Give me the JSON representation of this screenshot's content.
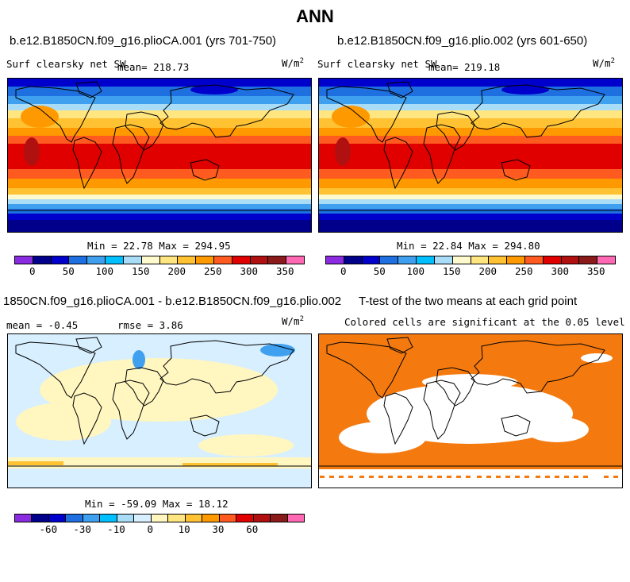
{
  "title": "ANN",
  "panels": {
    "p1": {
      "title": "b.e12.B1850CN.f09_g16.plioCA.001 (yrs 701-750)",
      "var": "Surf clearsky net SW",
      "mean": "mean= 218.73",
      "unit": "W/m",
      "unit_sup": "2",
      "minmax": "Min =  22.78 Max = 294.95"
    },
    "p2": {
      "title": "b.e12.B1850CN.f09_g16.plio.002 (yrs 601-650)",
      "var": "Surf clearsky net SW",
      "mean": "mean= 219.18",
      "unit": "W/m",
      "unit_sup": "2",
      "minmax": "Min =  22.84 Max = 294.80"
    },
    "p3": {
      "title": "1850CN.f09_g16.plioCA.001 - b.e12.B1850CN.f09_g16.plio.002",
      "mean": "mean =  -0.45",
      "rmse": "rmse =   3.86",
      "unit": "W/m",
      "unit_sup": "2",
      "minmax": "Min = -59.09 Max =  18.12"
    },
    "p4": {
      "title": "T-test of the two means at each grid point",
      "subtitle": "Colored cells are significant at the 0.05 level"
    }
  },
  "colorbars": {
    "abs": {
      "ticks": [
        "0",
        "50",
        "100",
        "150",
        "200",
        "250",
        "300",
        "350"
      ],
      "colors": [
        "#8a2be2",
        "#00008b",
        "#0000cd",
        "#1e6fe0",
        "#3fa0ef",
        "#00bfff",
        "#a9dcf7",
        "#fffacd",
        "#ffe680",
        "#ffc233",
        "#ff9900",
        "#ff5a1f",
        "#e00000",
        "#b01010",
        "#8b1a1a",
        "#ff69b4"
      ]
    },
    "diff": {
      "ticks": [
        "-60",
        "-30",
        "-10",
        "0",
        "10",
        "30",
        "60"
      ],
      "colors": [
        "#8a2be2",
        "#00008b",
        "#0000cd",
        "#1e6fe0",
        "#3fa0ef",
        "#00bfff",
        "#a9dcf7",
        "#d7efff",
        "#fff6c0",
        "#ffe680",
        "#ffc233",
        "#ff9900",
        "#ff5a1f",
        "#e00000",
        "#b01010",
        "#8b1a1a",
        "#ff69b4"
      ]
    }
  },
  "colors": {
    "ttest": "#f47a10"
  }
}
